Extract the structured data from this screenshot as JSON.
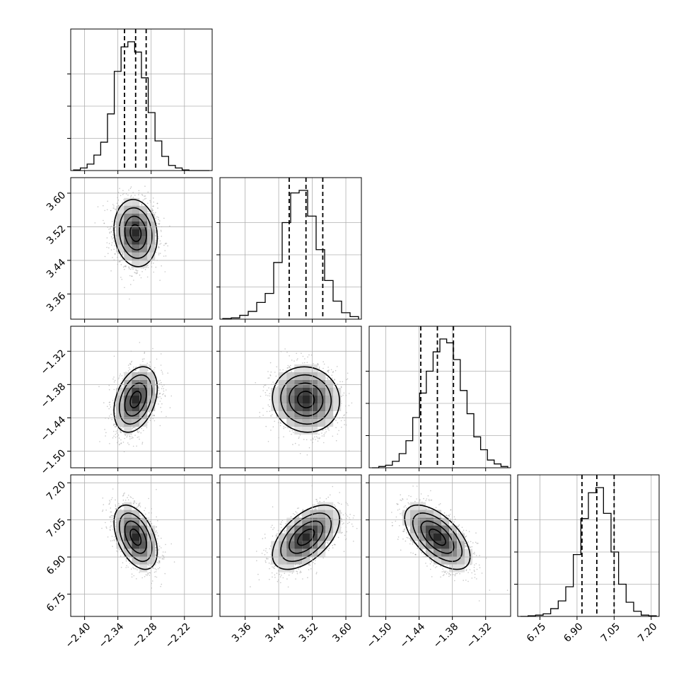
{
  "chart_data": {
    "type": "corner",
    "parameters": [
      {
        "ticks": [
          -2.4,
          -2.34,
          -2.28,
          -2.22
        ],
        "tick_labels": [
          "−2.40",
          "−2.34",
          "−2.28",
          "−2.22"
        ],
        "range": [
          -2.425,
          -2.17
        ],
        "quantiles": [
          -2.328,
          -2.308,
          -2.289
        ]
      },
      {
        "ticks": [
          3.36,
          3.44,
          3.52,
          3.6
        ],
        "tick_labels": [
          "3.36",
          "3.44",
          "3.52",
          "3.60"
        ],
        "range": [
          3.3,
          3.637
        ],
        "quantiles": [
          3.465,
          3.505,
          3.545
        ]
      },
      {
        "ticks": [
          -1.5,
          -1.44,
          -1.38,
          -1.32
        ],
        "tick_labels": [
          "−1.50",
          "−1.44",
          "−1.38",
          "−1.32"
        ],
        "range": [
          -1.53,
          -1.275
        ],
        "quantiles": [
          -1.437,
          -1.407,
          -1.378
        ]
      },
      {
        "ticks": [
          6.75,
          6.9,
          7.05,
          7.2
        ],
        "tick_labels": [
          "6.75",
          "6.90",
          "7.05",
          "7.20"
        ],
        "range": [
          6.66,
          7.232
        ],
        "quantiles": [
          6.92,
          6.98,
          7.05
        ]
      }
    ],
    "histograms": [
      [
        0.005,
        0.02,
        0.05,
        0.12,
        0.22,
        0.44,
        0.77,
        0.96,
        1.0,
        0.92,
        0.72,
        0.45,
        0.23,
        0.11,
        0.04,
        0.02,
        0.005,
        0.0,
        0.0,
        0.0
      ],
      [
        0.005,
        0.01,
        0.03,
        0.06,
        0.13,
        0.2,
        0.44,
        0.75,
        0.98,
        1.0,
        0.8,
        0.54,
        0.3,
        0.14,
        0.05,
        0.02
      ],
      [
        0.0,
        0.01,
        0.02,
        0.05,
        0.11,
        0.21,
        0.39,
        0.58,
        0.75,
        0.9,
        1.0,
        0.97,
        0.84,
        0.6,
        0.42,
        0.24,
        0.14,
        0.06,
        0.03,
        0.01
      ],
      [
        0.0,
        0.005,
        0.01,
        0.02,
        0.06,
        0.12,
        0.23,
        0.48,
        0.76,
        0.96,
        1.0,
        0.8,
        0.5,
        0.25,
        0.11,
        0.04,
        0.01,
        0.005
      ]
    ],
    "covariance": [
      {
        "row": 1,
        "col": 0,
        "corr": -0.12
      },
      {
        "row": 2,
        "col": 0,
        "corr": 0.35
      },
      {
        "row": 2,
        "col": 1,
        "corr": -0.05
      },
      {
        "row": 3,
        "col": 0,
        "corr": -0.45
      },
      {
        "row": 3,
        "col": 1,
        "corr": 0.55
      },
      {
        "row": 3,
        "col": 2,
        "corr": -0.6
      }
    ],
    "contour_levels": [
      0.5,
      1.0,
      1.5,
      2.0
    ],
    "grid": true,
    "colors": {
      "lines": "#000000",
      "grid": "#b0b0b0",
      "points": "#9a9a9a"
    }
  }
}
